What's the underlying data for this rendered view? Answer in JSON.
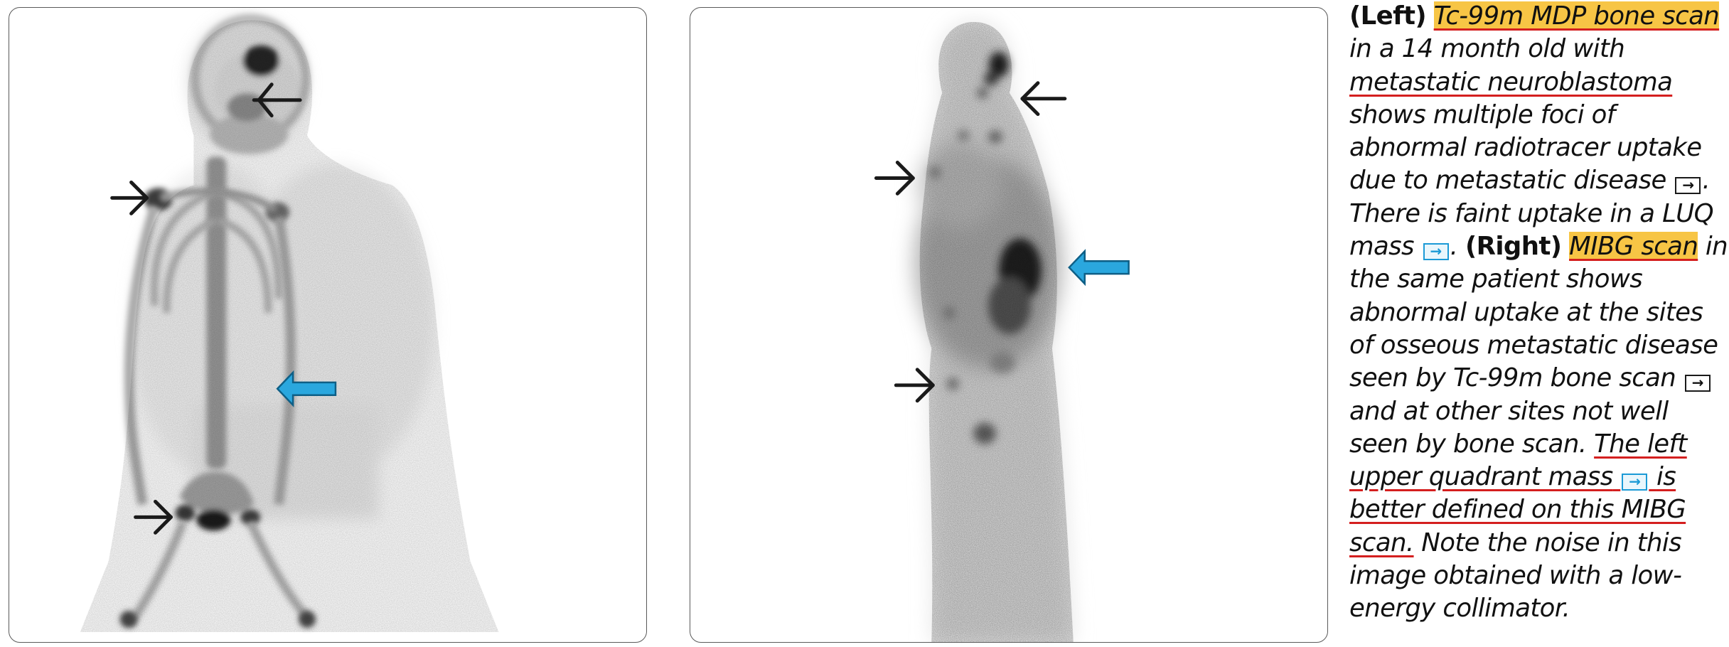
{
  "caption": {
    "left_label": "(Left)",
    "left_title": "Tc-99m MDP bone scan",
    "t1": "in a 14 month old with",
    "t2": "metastatic neuroblastoma",
    "t3": "shows multiple foci of",
    "t4": "abnormal radiotracer uptake",
    "t5": "due to metastatic disease",
    "t6": "There is faint uptake in a LUQ",
    "t7a": "mass",
    "right_label": "(Right)",
    "right_title": "MIBG scan",
    "t7b": "in",
    "t8": "the same patient shows",
    "t9": "abnormal uptake at the sites",
    "t10": "of osseous metastatic disease",
    "t11": "seen by Tc-99m bone scan",
    "t12": "and at other sites not well",
    "t13a": "seen by bone scan.",
    "t13b": "The left",
    "t14a": "upper quadrant mass",
    "t14b": "is",
    "t15": "better defined on this MIBG",
    "t16a": "scan.",
    "t16b": "Note the noise in this",
    "t17": "image obtained with a low-",
    "t18": "energy collimator.",
    "arrow_glyph": "→",
    "dot": "."
  },
  "colors": {
    "highlight": "#f7c545",
    "underline": "#d41f1f",
    "blue_arrow": "#1b9ad6",
    "black_arrow": "#1a1a1a"
  },
  "icons": {
    "open_arrow": "open-arrow-icon",
    "curved_arrow": "curved-arrow-icon"
  }
}
